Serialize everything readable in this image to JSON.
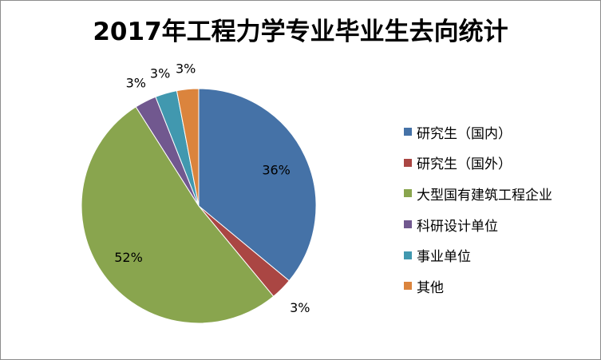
{
  "chart_data": {
    "type": "pie",
    "title": "2017年工程力学专业毕业生去向统计",
    "categories": [
      "研究生（国内）",
      "研究生（国外）",
      "大型国有建筑工程企业",
      "科研设计单位",
      "事业单位",
      "其他"
    ],
    "values": [
      36,
      3,
      52,
      3,
      3,
      3
    ],
    "data_labels": [
      "36%",
      "3%",
      "52%",
      "3%",
      "3%",
      "3%"
    ],
    "colors": [
      "#4572a7",
      "#aa4643",
      "#89a54e",
      "#71588f",
      "#4198af",
      "#db843d"
    ],
    "legend_position": "right"
  }
}
